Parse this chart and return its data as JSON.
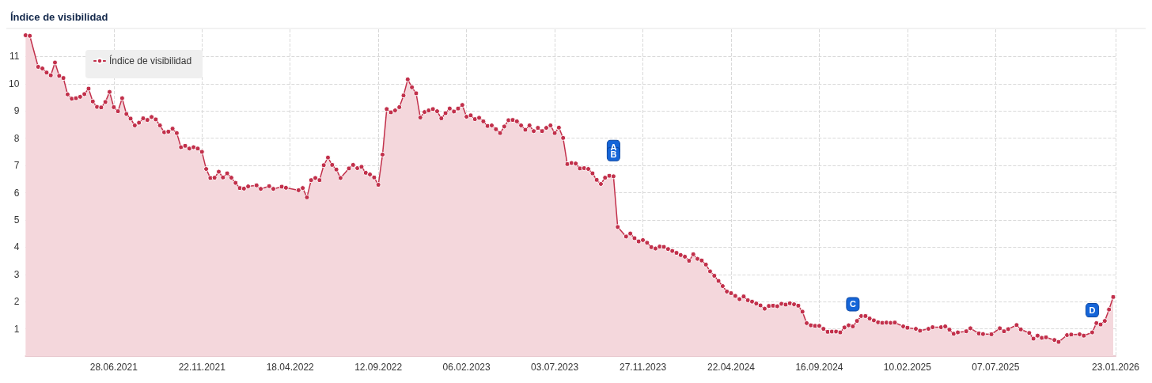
{
  "chart_data": {
    "type": "area",
    "title": "Índice de visibilidad",
    "legend": "top left",
    "grid": true,
    "marker": "circle",
    "line_style": "solid",
    "ylim": [
      0,
      12
    ],
    "yticks": [
      1,
      2,
      3,
      4,
      5,
      6,
      7,
      8,
      9,
      10,
      11
    ],
    "xlim": [
      "2021-02-01",
      "2026-01-23"
    ],
    "xticks": [
      {
        "value": "2021-06-28",
        "label": "28.06.2021"
      },
      {
        "value": "2021-11-22",
        "label": "22.11.2021"
      },
      {
        "value": "2022-04-18",
        "label": "18.04.2022"
      },
      {
        "value": "2022-09-12",
        "label": "12.09.2022"
      },
      {
        "value": "2023-02-06",
        "label": "06.02.2023"
      },
      {
        "value": "2023-07-03",
        "label": "03.07.2023"
      },
      {
        "value": "2023-11-27",
        "label": "27.11.2023"
      },
      {
        "value": "2024-04-22",
        "label": "22.04.2024"
      },
      {
        "value": "2024-09-16",
        "label": "16.09.2024"
      },
      {
        "value": "2025-02-10",
        "label": "10.02.2025"
      },
      {
        "value": "2025-07-07",
        "label": "07.07.2025"
      },
      {
        "value": "2026-01-23",
        "label": "23.01.2026"
      }
    ],
    "annotations": [
      {
        "text": "A",
        "x": "2023-10-09",
        "y": 6.6
      },
      {
        "text": "B",
        "x": "2023-10-09",
        "y": 6.6
      },
      {
        "text": "C",
        "x": "2024-11-11",
        "y": 1.09
      },
      {
        "text": "D",
        "x": "2025-12-15",
        "y": 0.87
      }
    ],
    "series": [
      {
        "name": "Índice de visibilidad",
        "color": "#c2304b",
        "x": [
          "2021-02-01",
          "2021-02-08",
          "2021-02-22",
          "2021-03-01",
          "2021-03-08",
          "2021-03-15",
          "2021-03-22",
          "2021-03-29",
          "2021-04-05",
          "2021-04-12",
          "2021-04-19",
          "2021-04-26",
          "2021-05-03",
          "2021-05-10",
          "2021-05-17",
          "2021-05-24",
          "2021-05-31",
          "2021-06-07",
          "2021-06-14",
          "2021-06-21",
          "2021-06-28",
          "2021-07-05",
          "2021-07-12",
          "2021-07-19",
          "2021-07-26",
          "2021-08-02",
          "2021-08-09",
          "2021-08-16",
          "2021-08-23",
          "2021-08-30",
          "2021-09-06",
          "2021-09-13",
          "2021-09-20",
          "2021-09-27",
          "2021-10-04",
          "2021-10-11",
          "2021-10-18",
          "2021-10-25",
          "2021-11-01",
          "2021-11-08",
          "2021-11-15",
          "2021-11-22",
          "2021-11-29",
          "2021-12-06",
          "2021-12-13",
          "2021-12-20",
          "2021-12-27",
          "2022-01-03",
          "2022-01-10",
          "2022-01-17",
          "2022-01-24",
          "2022-01-31",
          "2022-02-07",
          "2022-02-21",
          "2022-02-28",
          "2022-03-14",
          "2022-03-21",
          "2022-04-04",
          "2022-04-11",
          "2022-05-02",
          "2022-05-09",
          "2022-05-16",
          "2022-05-23",
          "2022-05-30",
          "2022-06-06",
          "2022-06-13",
          "2022-06-20",
          "2022-06-27",
          "2022-07-04",
          "2022-07-11",
          "2022-07-25",
          "2022-08-01",
          "2022-08-08",
          "2022-08-15",
          "2022-08-22",
          "2022-08-29",
          "2022-09-05",
          "2022-09-12",
          "2022-09-19",
          "2022-09-26",
          "2022-10-03",
          "2022-10-10",
          "2022-10-17",
          "2022-10-24",
          "2022-10-31",
          "2022-11-07",
          "2022-11-14",
          "2022-11-21",
          "2022-11-28",
          "2022-12-05",
          "2022-12-12",
          "2022-12-19",
          "2022-12-26",
          "2023-01-02",
          "2023-01-09",
          "2023-01-16",
          "2023-01-23",
          "2023-01-30",
          "2023-02-06",
          "2023-02-13",
          "2023-02-20",
          "2023-02-27",
          "2023-03-06",
          "2023-03-13",
          "2023-03-20",
          "2023-03-27",
          "2023-04-03",
          "2023-04-10",
          "2023-04-17",
          "2023-04-24",
          "2023-05-01",
          "2023-05-08",
          "2023-05-15",
          "2023-05-22",
          "2023-05-29",
          "2023-06-05",
          "2023-06-12",
          "2023-06-19",
          "2023-06-26",
          "2023-07-03",
          "2023-07-10",
          "2023-07-17",
          "2023-07-24",
          "2023-07-31",
          "2023-08-07",
          "2023-08-14",
          "2023-08-21",
          "2023-08-28",
          "2023-09-04",
          "2023-09-11",
          "2023-09-18",
          "2023-09-25",
          "2023-10-02",
          "2023-10-09",
          "2023-10-16",
          "2023-10-30",
          "2023-11-06",
          "2023-11-13",
          "2023-11-20",
          "2023-11-27",
          "2023-12-04",
          "2023-12-11",
          "2023-12-18",
          "2023-12-25",
          "2024-01-01",
          "2024-01-08",
          "2024-01-15",
          "2024-01-22",
          "2024-01-29",
          "2024-02-05",
          "2024-02-12",
          "2024-02-19",
          "2024-02-26",
          "2024-03-04",
          "2024-03-11",
          "2024-03-18",
          "2024-03-25",
          "2024-04-01",
          "2024-04-08",
          "2024-04-15",
          "2024-04-22",
          "2024-04-29",
          "2024-05-06",
          "2024-05-13",
          "2024-05-20",
          "2024-05-27",
          "2024-06-03",
          "2024-06-10",
          "2024-06-17",
          "2024-06-24",
          "2024-07-01",
          "2024-07-08",
          "2024-07-15",
          "2024-07-22",
          "2024-07-29",
          "2024-08-05",
          "2024-08-12",
          "2024-08-19",
          "2024-08-26",
          "2024-09-02",
          "2024-09-09",
          "2024-09-16",
          "2024-09-23",
          "2024-09-30",
          "2024-10-07",
          "2024-10-14",
          "2024-10-21",
          "2024-10-28",
          "2024-11-04",
          "2024-11-11",
          "2024-11-18",
          "2024-11-25",
          "2024-12-02",
          "2024-12-09",
          "2024-12-16",
          "2024-12-23",
          "2024-12-30",
          "2025-01-06",
          "2025-01-13",
          "2025-01-20",
          "2025-02-03",
          "2025-02-10",
          "2025-02-24",
          "2025-03-03",
          "2025-03-17",
          "2025-03-24",
          "2025-04-07",
          "2025-04-14",
          "2025-04-21",
          "2025-04-28",
          "2025-05-05",
          "2025-05-19",
          "2025-05-26",
          "2025-06-09",
          "2025-06-16",
          "2025-06-30",
          "2025-07-14",
          "2025-07-21",
          "2025-07-28",
          "2025-08-11",
          "2025-08-18",
          "2025-09-01",
          "2025-09-08",
          "2025-09-15",
          "2025-09-22",
          "2025-09-29",
          "2025-10-13",
          "2025-10-20",
          "2025-11-03",
          "2025-11-10",
          "2025-11-24",
          "2025-12-01",
          "2025-12-15",
          "2025-12-22",
          "2025-12-29",
          "2026-01-05",
          "2026-01-12",
          "2026-01-19"
        ],
        "values": [
          11.78,
          11.76,
          10.62,
          10.56,
          10.41,
          10.31,
          10.78,
          10.29,
          10.21,
          9.61,
          9.45,
          9.47,
          9.52,
          9.62,
          9.82,
          9.35,
          9.15,
          9.13,
          9.33,
          9.7,
          9.14,
          8.99,
          9.47,
          8.89,
          8.72,
          8.47,
          8.57,
          8.73,
          8.67,
          8.78,
          8.69,
          8.47,
          8.22,
          8.24,
          8.35,
          8.19,
          7.67,
          7.72,
          7.62,
          7.67,
          7.62,
          7.5,
          6.87,
          6.54,
          6.55,
          6.77,
          6.56,
          6.71,
          6.55,
          6.36,
          6.17,
          6.15,
          6.23,
          6.27,
          6.14,
          6.24,
          6.14,
          6.22,
          6.18,
          6.09,
          6.17,
          5.83,
          6.46,
          6.54,
          6.46,
          7.01,
          7.29,
          7.02,
          6.85,
          6.54,
          6.89,
          7.02,
          6.9,
          6.95,
          6.73,
          6.67,
          6.56,
          6.29,
          7.4,
          9.07,
          8.95,
          9.02,
          9.14,
          9.57,
          10.16,
          9.87,
          9.65,
          8.76,
          8.96,
          9.02,
          9.07,
          8.99,
          8.73,
          8.92,
          9.09,
          8.98,
          9.09,
          9.22,
          8.79,
          8.84,
          8.7,
          8.75,
          8.62,
          8.45,
          8.47,
          8.33,
          8.19,
          8.43,
          8.66,
          8.67,
          8.62,
          8.47,
          8.31,
          8.47,
          8.26,
          8.38,
          8.26,
          8.38,
          8.47,
          8.19,
          8.39,
          8.01,
          7.05,
          7.09,
          7.07,
          6.89,
          6.9,
          6.87,
          6.71,
          6.47,
          6.32,
          6.55,
          6.62,
          6.6,
          4.74,
          4.39,
          4.5,
          4.33,
          4.21,
          4.26,
          4.16,
          4.0,
          3.95,
          4.02,
          4.01,
          3.93,
          3.86,
          3.79,
          3.71,
          3.65,
          3.5,
          3.74,
          3.57,
          3.51,
          3.36,
          3.11,
          2.95,
          2.76,
          2.57,
          2.37,
          2.31,
          2.21,
          2.09,
          2.19,
          2.05,
          2.0,
          1.93,
          1.86,
          1.74,
          1.84,
          1.85,
          1.83,
          1.92,
          1.89,
          1.94,
          1.9,
          1.85,
          1.63,
          1.21,
          1.13,
          1.11,
          1.11,
          1.0,
          0.89,
          0.9,
          0.9,
          0.87,
          1.05,
          1.13,
          1.09,
          1.29,
          1.47,
          1.47,
          1.38,
          1.31,
          1.24,
          1.22,
          1.23,
          1.22,
          1.23,
          1.09,
          1.04,
          1.0,
          0.93,
          1.0,
          1.06,
          1.06,
          1.09,
          0.97,
          0.82,
          0.87,
          0.91,
          1.02,
          0.83,
          0.81,
          0.8,
          1.02,
          0.91,
          0.99,
          1.14,
          0.98,
          0.85,
          0.64,
          0.75,
          0.67,
          0.69,
          0.59,
          0.52,
          0.77,
          0.79,
          0.8,
          0.75,
          0.87,
          1.21,
          1.16,
          1.29,
          1.71,
          2.17
        ]
      }
    ]
  }
}
